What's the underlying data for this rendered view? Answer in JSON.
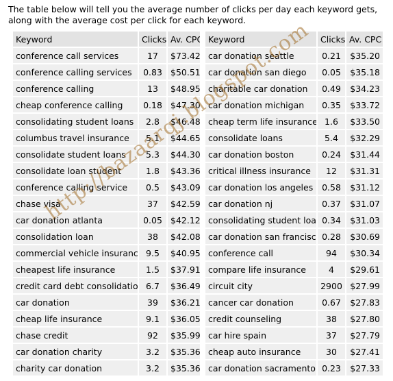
{
  "intro": "The table below will tell you the average number of clicks per day each keyword gets, along with the average cost per click for each keyword.",
  "columns": [
    "Keyword",
    "Clicks",
    "Av. CPC"
  ],
  "left": [
    [
      "conference call services",
      "17",
      "$73.42"
    ],
    [
      "conference calling services",
      "0.83",
      "$50.51"
    ],
    [
      "conference calling",
      "13",
      "$48.95"
    ],
    [
      "cheap conference calling",
      "0.18",
      "$47.30"
    ],
    [
      "consolidating student loans",
      "2.8",
      "$46.48"
    ],
    [
      "columbus travel insurance",
      "5.1",
      "$44.65"
    ],
    [
      "consolidate student loans",
      "5.3",
      "$44.30"
    ],
    [
      "consolidate loan student",
      "1.8",
      "$43.36"
    ],
    [
      "conference calling service",
      "0.5",
      "$43.09"
    ],
    [
      "chase visa",
      "37",
      "$42.59"
    ],
    [
      "car donation atlanta",
      "0.05",
      "$42.12"
    ],
    [
      "consolidation loan",
      "38",
      "$42.08"
    ],
    [
      "commercial vehicle insurance",
      "9.5",
      "$40.95"
    ],
    [
      "cheapest life insurance",
      "1.5",
      "$37.91"
    ],
    [
      "credit card debt consolidation",
      "6.7",
      "$36.49"
    ],
    [
      "car donation",
      "39",
      "$36.21"
    ],
    [
      "cheap life insurance",
      "9.1",
      "$36.05"
    ],
    [
      "chase credit",
      "92",
      "$35.99"
    ],
    [
      "car donation charity",
      "3.2",
      "$35.36"
    ],
    [
      "charity car donation",
      "3.2",
      "$35.36"
    ]
  ],
  "right": [
    [
      "car donation seattle",
      "0.21",
      "$35.20"
    ],
    [
      "car donation san diego",
      "0.05",
      "$35.18"
    ],
    [
      "charitable car donation",
      "0.49",
      "$34.23"
    ],
    [
      "car donation michigan",
      "0.35",
      "$33.72"
    ],
    [
      "cheap term life insurance",
      "1.6",
      "$33.50"
    ],
    [
      "consolidate loans",
      "5.4",
      "$32.29"
    ],
    [
      "car donation boston",
      "0.24",
      "$31.44"
    ],
    [
      "critical illness insurance",
      "12",
      "$31.31"
    ],
    [
      "car donation los angeles",
      "0.58",
      "$31.12"
    ],
    [
      "car donation nj",
      "0.37",
      "$31.07"
    ],
    [
      "consolidating student loan",
      "0.34",
      "$31.03"
    ],
    [
      "car donation san francisco",
      "0.28",
      "$30.69"
    ],
    [
      "conference call",
      "94",
      "$30.34"
    ],
    [
      "compare life insurance",
      "4",
      "$29.61"
    ],
    [
      "circuit city",
      "2900",
      "$27.99"
    ],
    [
      "cancer car donation",
      "0.67",
      "$27.83"
    ],
    [
      "credit counseling",
      "38",
      "$27.80"
    ],
    [
      "car hire spain",
      "37",
      "$27.79"
    ],
    [
      "cheap auto insurance",
      "30",
      "$27.41"
    ],
    [
      "car donation sacramento",
      "0.23",
      "$27.33"
    ]
  ],
  "watermark": "http://bazaarqj.blogspot.com"
}
